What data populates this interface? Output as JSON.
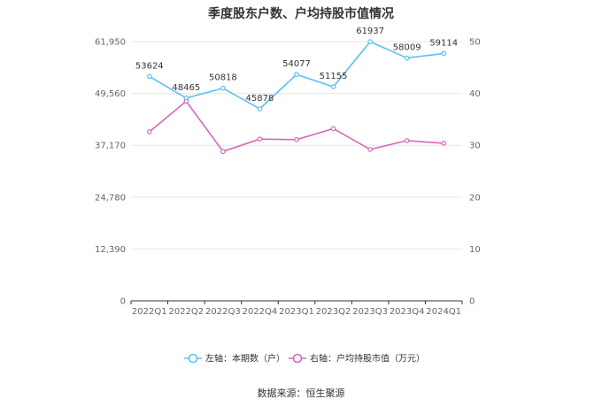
{
  "chart_data": {
    "type": "line",
    "title": "季度股东户数、户均持股市值情况",
    "categories": [
      "2022Q1",
      "2022Q2",
      "2022Q3",
      "2022Q4",
      "2023Q1",
      "2023Q2",
      "2023Q3",
      "2023Q4",
      "2024Q1"
    ],
    "left_axis": {
      "ticks": [
        "0",
        "12,390",
        "24,780",
        "37,170",
        "49,560",
        "61,950"
      ],
      "ylim": [
        0,
        61950
      ]
    },
    "right_axis": {
      "ticks": [
        "0",
        "10",
        "20",
        "30",
        "40",
        "50"
      ],
      "ylim": [
        0,
        50
      ]
    },
    "series": [
      {
        "name": "左轴：本期数（户）",
        "axis": "left",
        "color": "#5bc0f0",
        "values": [
          53624,
          48465,
          50818,
          45878,
          54077,
          51155,
          61937,
          58009,
          59114
        ],
        "labels": [
          "53624",
          "48465",
          "50818",
          "45878",
          "54077",
          "51155",
          "61937",
          "58009",
          "59114"
        ]
      },
      {
        "name": "右轴：户均持股市值（万元）",
        "axis": "right",
        "color": "#d966b8",
        "values": [
          32.6,
          38.5,
          28.8,
          31.2,
          31.1,
          33.2,
          29.2,
          30.9,
          30.4
        ]
      }
    ],
    "grid": true,
    "legend_position": "bottom"
  },
  "source": "数据来源：恒生聚源"
}
